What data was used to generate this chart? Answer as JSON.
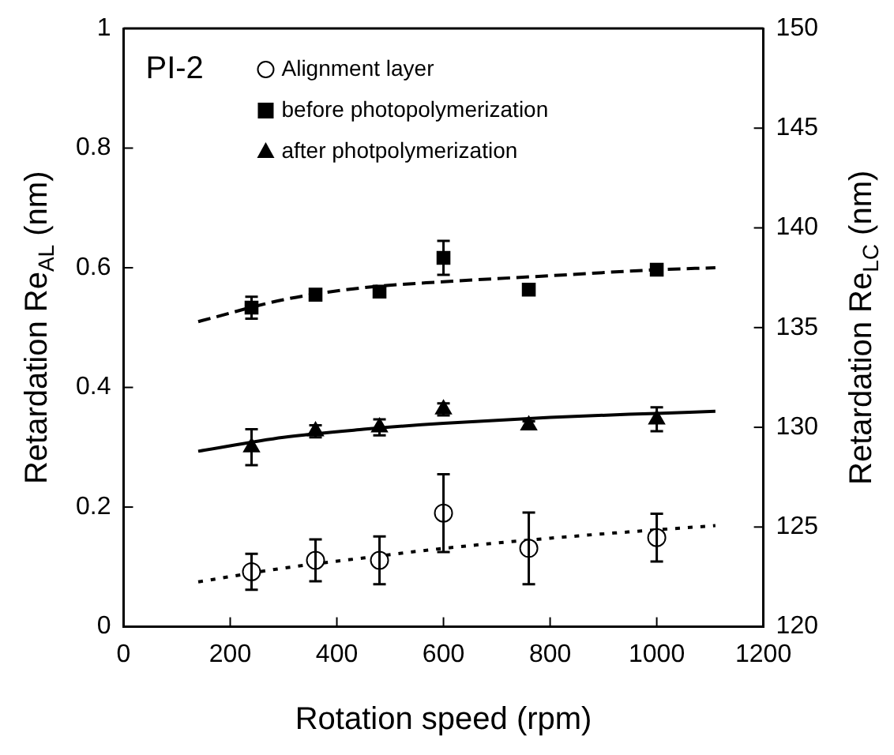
{
  "chart_data": {
    "type": "scatter",
    "xlabel": "Rotation speed (rpm)",
    "ylabel": "Retardation Re$_{AL}$ (nm)",
    "y2label": "Retardation Re$_{LC}$ (nm)",
    "annotations": [
      "PI-2"
    ],
    "xlim": [
      0,
      1200
    ],
    "xticks": [
      0,
      200,
      400,
      600,
      800,
      1000,
      1200
    ],
    "ylim": [
      0,
      1
    ],
    "yticks": [
      0,
      0.2,
      0.4,
      0.6,
      0.8,
      1
    ],
    "y2lim": [
      120,
      150
    ],
    "y2ticks": [
      120,
      125,
      130,
      135,
      140,
      145,
      150
    ],
    "grid": false,
    "legend": "top left",
    "series": [
      {
        "name": "Alignment layer",
        "marker": "circle",
        "color": "#000000",
        "x": [
          240,
          360,
          480,
          600,
          760,
          1000
        ],
        "values": [
          0.092,
          0.111,
          0.111,
          0.19,
          0.131,
          0.149
        ],
        "errors": [
          0.03,
          0.035,
          0.04,
          0.065,
          0.06,
          0.04
        ]
      },
      {
        "name": "before photopolymerization",
        "marker": "square",
        "axis": "y2",
        "color": "#000000",
        "x": [
          240,
          360,
          480,
          600,
          760,
          1000
        ],
        "values": [
          136.0,
          136.65,
          136.8,
          138.5,
          136.9,
          137.9
        ],
        "errors": [
          0.55,
          0.15,
          0.15,
          0.85,
          null,
          0.1
        ]
      },
      {
        "name": "after photpolymerization",
        "marker": "triangle",
        "axis": "y2",
        "color": "#000000",
        "x": [
          240,
          360,
          480,
          600,
          760,
          1000
        ],
        "values": [
          129.0,
          129.8,
          130.0,
          130.9,
          130.1,
          130.4
        ],
        "errors": [
          0.9,
          0.3,
          0.4,
          0.3,
          0.2,
          0.6
        ]
      },
      {
        "type": "line",
        "marker": "none",
        "line_style": "dotted",
        "color": "#000000",
        "x": [
          140,
          300,
          450,
          600,
          800,
          1000,
          1110
        ],
        "values": [
          0.075,
          0.098,
          0.115,
          0.131,
          0.148,
          0.162,
          0.169
        ]
      },
      {
        "type": "line",
        "marker": "none",
        "line_style": "dashed",
        "axis": "y2",
        "color": "#000000",
        "x": [
          140,
          300,
          450,
          600,
          800,
          1000,
          1110
        ],
        "values": [
          135.3,
          136.4,
          137.0,
          137.3,
          137.6,
          137.9,
          138.0
        ]
      },
      {
        "type": "line",
        "marker": "none",
        "line_style": "solid",
        "axis": "y2",
        "color": "#000000",
        "x": [
          140,
          300,
          450,
          600,
          800,
          1000,
          1110
        ],
        "values": [
          128.8,
          129.5,
          129.9,
          130.2,
          130.5,
          130.7,
          130.8
        ]
      }
    ]
  }
}
